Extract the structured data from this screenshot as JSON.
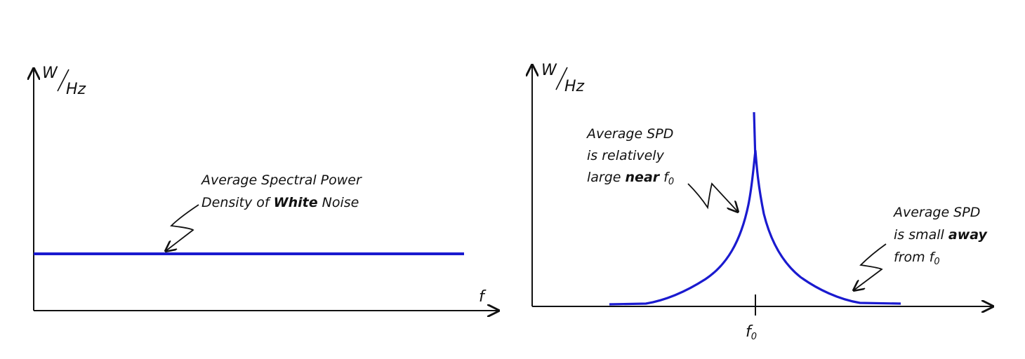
{
  "left_panel": {
    "y_unit_top": "W",
    "y_unit_bottom": "Hz",
    "x_label": "f",
    "annotation_line1": "Average Spectral Power",
    "annotation_line2_pre": "Density of ",
    "annotation_line2_bold": "White",
    "annotation_line2_post": " Noise"
  },
  "right_panel": {
    "y_unit_top": "W",
    "y_unit_bottom": "Hz",
    "x_tick_main": "f",
    "x_tick_sub": "0",
    "near_line1": "Average SPD",
    "near_line2": "is relatively",
    "near_line3_pre": "large ",
    "near_line3_bold": "near",
    "near_line3_post": " f",
    "near_line3_sub": "0",
    "away_line1": "Average SPD",
    "away_line2_pre": "is small ",
    "away_line2_bold": "away",
    "away_line3_pre": "from f",
    "away_line3_sub": "0"
  },
  "colors": {
    "curve": "#1a1acf",
    "axis": "#111111"
  }
}
